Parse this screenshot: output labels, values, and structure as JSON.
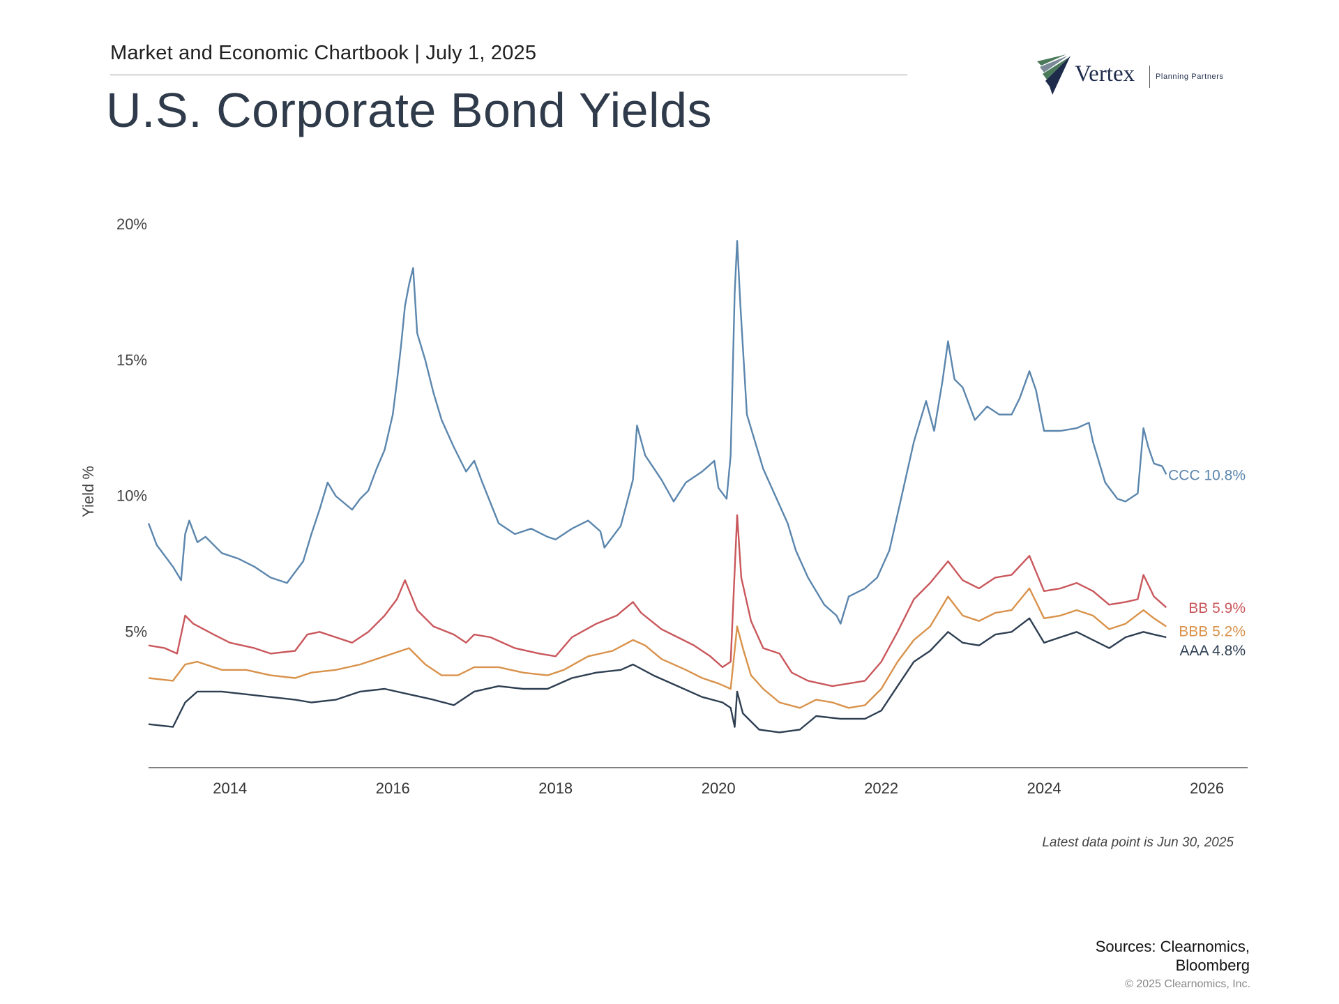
{
  "header": {
    "kicker": "Market and Economic Chartbook | July 1, 2025",
    "title": "U.S. Corporate Bond Yields"
  },
  "logo": {
    "name": "Vertex",
    "tagline": "Planning Partners",
    "colors": {
      "navy": "#1e2b4a",
      "green": "#4a7a5a",
      "grey": "#7a8a96"
    }
  },
  "chart_data": {
    "type": "line",
    "title": "",
    "xlabel": "",
    "ylabel": "Yield %",
    "ylim": [
      0,
      20
    ],
    "xlim": [
      2013.0,
      2026.5
    ],
    "yticks": [
      5,
      10,
      15,
      20
    ],
    "ytick_labels": [
      "5%",
      "10%",
      "15%",
      "20%"
    ],
    "xticks": [
      2014,
      2016,
      2018,
      2020,
      2022,
      2024,
      2026
    ],
    "xtick_labels": [
      "2014",
      "2016",
      "2018",
      "2020",
      "2022",
      "2024",
      "2026"
    ],
    "grid": false,
    "series": [
      {
        "name": "CCC",
        "end_label": "CCC 10.8%",
        "color": "#5b86ad",
        "points": [
          [
            2013.0,
            9.0
          ],
          [
            2013.1,
            8.2
          ],
          [
            2013.3,
            7.4
          ],
          [
            2013.4,
            6.9
          ],
          [
            2013.45,
            8.6
          ],
          [
            2013.5,
            9.1
          ],
          [
            2013.6,
            8.3
          ],
          [
            2013.7,
            8.5
          ],
          [
            2013.9,
            7.9
          ],
          [
            2014.1,
            7.7
          ],
          [
            2014.3,
            7.4
          ],
          [
            2014.5,
            7.0
          ],
          [
            2014.7,
            6.8
          ],
          [
            2014.8,
            7.2
          ],
          [
            2014.9,
            7.6
          ],
          [
            2015.0,
            8.6
          ],
          [
            2015.1,
            9.5
          ],
          [
            2015.2,
            10.5
          ],
          [
            2015.3,
            10.0
          ],
          [
            2015.5,
            9.5
          ],
          [
            2015.6,
            9.9
          ],
          [
            2015.7,
            10.2
          ],
          [
            2015.8,
            11.0
          ],
          [
            2015.9,
            11.7
          ],
          [
            2016.0,
            13.0
          ],
          [
            2016.05,
            14.2
          ],
          [
            2016.1,
            15.5
          ],
          [
            2016.15,
            17.0
          ],
          [
            2016.2,
            17.8
          ],
          [
            2016.25,
            18.4
          ],
          [
            2016.3,
            16.0
          ],
          [
            2016.4,
            15.0
          ],
          [
            2016.5,
            13.8
          ],
          [
            2016.6,
            12.8
          ],
          [
            2016.75,
            11.8
          ],
          [
            2016.9,
            10.9
          ],
          [
            2017.0,
            11.3
          ],
          [
            2017.1,
            10.5
          ],
          [
            2017.3,
            9.0
          ],
          [
            2017.5,
            8.6
          ],
          [
            2017.7,
            8.8
          ],
          [
            2017.9,
            8.5
          ],
          [
            2018.0,
            8.4
          ],
          [
            2018.2,
            8.8
          ],
          [
            2018.4,
            9.1
          ],
          [
            2018.55,
            8.7
          ],
          [
            2018.6,
            8.1
          ],
          [
            2018.8,
            8.9
          ],
          [
            2018.95,
            10.6
          ],
          [
            2019.0,
            12.6
          ],
          [
            2019.1,
            11.5
          ],
          [
            2019.3,
            10.6
          ],
          [
            2019.45,
            9.8
          ],
          [
            2019.6,
            10.5
          ],
          [
            2019.8,
            10.9
          ],
          [
            2019.95,
            11.3
          ],
          [
            2020.0,
            10.3
          ],
          [
            2020.1,
            9.9
          ],
          [
            2020.15,
            11.5
          ],
          [
            2020.2,
            17.5
          ],
          [
            2020.23,
            19.4
          ],
          [
            2020.27,
            17.0
          ],
          [
            2020.35,
            13.0
          ],
          [
            2020.45,
            12.0
          ],
          [
            2020.55,
            11.0
          ],
          [
            2020.7,
            10.0
          ],
          [
            2020.85,
            9.0
          ],
          [
            2020.95,
            8.0
          ],
          [
            2021.1,
            7.0
          ],
          [
            2021.3,
            6.0
          ],
          [
            2021.45,
            5.6
          ],
          [
            2021.5,
            5.3
          ],
          [
            2021.6,
            6.3
          ],
          [
            2021.8,
            6.6
          ],
          [
            2021.95,
            7.0
          ],
          [
            2022.1,
            8.0
          ],
          [
            2022.25,
            10.0
          ],
          [
            2022.4,
            12.0
          ],
          [
            2022.55,
            13.5
          ],
          [
            2022.65,
            12.4
          ],
          [
            2022.75,
            14.2
          ],
          [
            2022.82,
            15.7
          ],
          [
            2022.9,
            14.3
          ],
          [
            2023.0,
            14.0
          ],
          [
            2023.15,
            12.8
          ],
          [
            2023.3,
            13.3
          ],
          [
            2023.45,
            13.0
          ],
          [
            2023.6,
            13.0
          ],
          [
            2023.7,
            13.6
          ],
          [
            2023.82,
            14.6
          ],
          [
            2023.9,
            13.9
          ],
          [
            2024.0,
            12.4
          ],
          [
            2024.2,
            12.4
          ],
          [
            2024.4,
            12.5
          ],
          [
            2024.55,
            12.7
          ],
          [
            2024.6,
            12.0
          ],
          [
            2024.75,
            10.5
          ],
          [
            2024.9,
            9.9
          ],
          [
            2025.0,
            9.8
          ],
          [
            2025.15,
            10.1
          ],
          [
            2025.22,
            12.5
          ],
          [
            2025.28,
            11.8
          ],
          [
            2025.35,
            11.2
          ],
          [
            2025.45,
            11.1
          ],
          [
            2025.5,
            10.8
          ]
        ]
      },
      {
        "name": "BB",
        "end_label": "BB 5.9%",
        "color": "#c9575c",
        "points": [
          [
            2013.0,
            4.5
          ],
          [
            2013.2,
            4.4
          ],
          [
            2013.35,
            4.2
          ],
          [
            2013.45,
            5.6
          ],
          [
            2013.55,
            5.3
          ],
          [
            2013.8,
            4.9
          ],
          [
            2014.0,
            4.6
          ],
          [
            2014.3,
            4.4
          ],
          [
            2014.5,
            4.2
          ],
          [
            2014.8,
            4.3
          ],
          [
            2014.95,
            4.9
          ],
          [
            2015.1,
            5.0
          ],
          [
            2015.3,
            4.8
          ],
          [
            2015.5,
            4.6
          ],
          [
            2015.7,
            5.0
          ],
          [
            2015.9,
            5.6
          ],
          [
            2016.05,
            6.2
          ],
          [
            2016.15,
            6.9
          ],
          [
            2016.3,
            5.8
          ],
          [
            2016.5,
            5.2
          ],
          [
            2016.75,
            4.9
          ],
          [
            2016.9,
            4.6
          ],
          [
            2017.0,
            4.9
          ],
          [
            2017.2,
            4.8
          ],
          [
            2017.5,
            4.4
          ],
          [
            2017.8,
            4.2
          ],
          [
            2018.0,
            4.1
          ],
          [
            2018.2,
            4.8
          ],
          [
            2018.5,
            5.3
          ],
          [
            2018.75,
            5.6
          ],
          [
            2018.95,
            6.1
          ],
          [
            2019.05,
            5.7
          ],
          [
            2019.3,
            5.1
          ],
          [
            2019.5,
            4.8
          ],
          [
            2019.7,
            4.5
          ],
          [
            2019.9,
            4.1
          ],
          [
            2020.05,
            3.7
          ],
          [
            2020.15,
            3.9
          ],
          [
            2020.23,
            9.3
          ],
          [
            2020.28,
            7.0
          ],
          [
            2020.4,
            5.4
          ],
          [
            2020.55,
            4.4
          ],
          [
            2020.75,
            4.2
          ],
          [
            2020.9,
            3.5
          ],
          [
            2021.1,
            3.2
          ],
          [
            2021.4,
            3.0
          ],
          [
            2021.6,
            3.1
          ],
          [
            2021.8,
            3.2
          ],
          [
            2022.0,
            3.9
          ],
          [
            2022.2,
            5.0
          ],
          [
            2022.4,
            6.2
          ],
          [
            2022.6,
            6.8
          ],
          [
            2022.82,
            7.6
          ],
          [
            2023.0,
            6.9
          ],
          [
            2023.2,
            6.6
          ],
          [
            2023.4,
            7.0
          ],
          [
            2023.6,
            7.1
          ],
          [
            2023.82,
            7.8
          ],
          [
            2024.0,
            6.5
          ],
          [
            2024.2,
            6.6
          ],
          [
            2024.4,
            6.8
          ],
          [
            2024.6,
            6.5
          ],
          [
            2024.8,
            6.0
          ],
          [
            2025.0,
            6.1
          ],
          [
            2025.15,
            6.2
          ],
          [
            2025.22,
            7.1
          ],
          [
            2025.35,
            6.3
          ],
          [
            2025.5,
            5.9
          ]
        ]
      },
      {
        "name": "BBB",
        "end_label": "BBB 5.2%",
        "color": "#d9924b",
        "points": [
          [
            2013.0,
            3.3
          ],
          [
            2013.3,
            3.2
          ],
          [
            2013.45,
            3.8
          ],
          [
            2013.6,
            3.9
          ],
          [
            2013.9,
            3.6
          ],
          [
            2014.2,
            3.6
          ],
          [
            2014.5,
            3.4
          ],
          [
            2014.8,
            3.3
          ],
          [
            2015.0,
            3.5
          ],
          [
            2015.3,
            3.6
          ],
          [
            2015.6,
            3.8
          ],
          [
            2015.9,
            4.1
          ],
          [
            2016.1,
            4.3
          ],
          [
            2016.2,
            4.4
          ],
          [
            2016.4,
            3.8
          ],
          [
            2016.6,
            3.4
          ],
          [
            2016.8,
            3.4
          ],
          [
            2017.0,
            3.7
          ],
          [
            2017.3,
            3.7
          ],
          [
            2017.6,
            3.5
          ],
          [
            2017.9,
            3.4
          ],
          [
            2018.1,
            3.6
          ],
          [
            2018.4,
            4.1
          ],
          [
            2018.7,
            4.3
          ],
          [
            2018.95,
            4.7
          ],
          [
            2019.1,
            4.5
          ],
          [
            2019.3,
            4.0
          ],
          [
            2019.6,
            3.6
          ],
          [
            2019.8,
            3.3
          ],
          [
            2020.0,
            3.1
          ],
          [
            2020.15,
            2.9
          ],
          [
            2020.23,
            5.2
          ],
          [
            2020.3,
            4.4
          ],
          [
            2020.4,
            3.4
          ],
          [
            2020.55,
            2.9
          ],
          [
            2020.75,
            2.4
          ],
          [
            2021.0,
            2.2
          ],
          [
            2021.2,
            2.5
          ],
          [
            2021.4,
            2.4
          ],
          [
            2021.6,
            2.2
          ],
          [
            2021.8,
            2.3
          ],
          [
            2022.0,
            2.9
          ],
          [
            2022.2,
            3.9
          ],
          [
            2022.4,
            4.7
          ],
          [
            2022.6,
            5.2
          ],
          [
            2022.82,
            6.3
          ],
          [
            2023.0,
            5.6
          ],
          [
            2023.2,
            5.4
          ],
          [
            2023.4,
            5.7
          ],
          [
            2023.6,
            5.8
          ],
          [
            2023.82,
            6.6
          ],
          [
            2024.0,
            5.5
          ],
          [
            2024.2,
            5.6
          ],
          [
            2024.4,
            5.8
          ],
          [
            2024.6,
            5.6
          ],
          [
            2024.8,
            5.1
          ],
          [
            2025.0,
            5.3
          ],
          [
            2025.22,
            5.8
          ],
          [
            2025.35,
            5.5
          ],
          [
            2025.5,
            5.2
          ]
        ]
      },
      {
        "name": "AAA",
        "end_label": "AAA 4.8%",
        "color": "#2e3f52",
        "points": [
          [
            2013.0,
            1.6
          ],
          [
            2013.3,
            1.5
          ],
          [
            2013.45,
            2.4
          ],
          [
            2013.6,
            2.8
          ],
          [
            2013.9,
            2.8
          ],
          [
            2014.2,
            2.7
          ],
          [
            2014.5,
            2.6
          ],
          [
            2014.8,
            2.5
          ],
          [
            2015.0,
            2.4
          ],
          [
            2015.3,
            2.5
          ],
          [
            2015.6,
            2.8
          ],
          [
            2015.9,
            2.9
          ],
          [
            2016.2,
            2.7
          ],
          [
            2016.5,
            2.5
          ],
          [
            2016.75,
            2.3
          ],
          [
            2017.0,
            2.8
          ],
          [
            2017.3,
            3.0
          ],
          [
            2017.6,
            2.9
          ],
          [
            2017.9,
            2.9
          ],
          [
            2018.2,
            3.3
          ],
          [
            2018.5,
            3.5
          ],
          [
            2018.8,
            3.6
          ],
          [
            2018.95,
            3.8
          ],
          [
            2019.2,
            3.4
          ],
          [
            2019.5,
            3.0
          ],
          [
            2019.8,
            2.6
          ],
          [
            2020.05,
            2.4
          ],
          [
            2020.15,
            2.2
          ],
          [
            2020.2,
            1.5
          ],
          [
            2020.23,
            2.8
          ],
          [
            2020.3,
            2.0
          ],
          [
            2020.5,
            1.4
          ],
          [
            2020.75,
            1.3
          ],
          [
            2021.0,
            1.4
          ],
          [
            2021.2,
            1.9
          ],
          [
            2021.5,
            1.8
          ],
          [
            2021.8,
            1.8
          ],
          [
            2022.0,
            2.1
          ],
          [
            2022.2,
            3.0
          ],
          [
            2022.4,
            3.9
          ],
          [
            2022.6,
            4.3
          ],
          [
            2022.82,
            5.0
          ],
          [
            2023.0,
            4.6
          ],
          [
            2023.2,
            4.5
          ],
          [
            2023.4,
            4.9
          ],
          [
            2023.6,
            5.0
          ],
          [
            2023.82,
            5.5
          ],
          [
            2024.0,
            4.6
          ],
          [
            2024.2,
            4.8
          ],
          [
            2024.4,
            5.0
          ],
          [
            2024.6,
            4.7
          ],
          [
            2024.8,
            4.4
          ],
          [
            2025.0,
            4.8
          ],
          [
            2025.22,
            5.0
          ],
          [
            2025.35,
            4.9
          ],
          [
            2025.5,
            4.8
          ]
        ]
      }
    ],
    "note": "Latest data point is Jun 30, 2025"
  },
  "footer": {
    "sources_line1": "Sources: Clearnomics,",
    "sources_line2": "Bloomberg",
    "copyright": "© 2025 Clearnomics, Inc."
  }
}
